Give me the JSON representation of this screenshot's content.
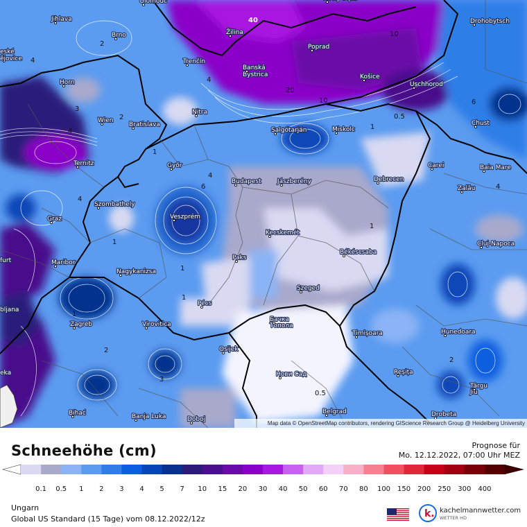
{
  "map": {
    "attribution": "Map data © OpenStreetMap contributors, rendering GIScience Research Group @ Heidelberg University",
    "cities": [
      "Olomouc",
      "Nowy Sącz",
      "Jihlava",
      "Brno",
      "Žilina",
      "Poprad",
      "Drohobytsch",
      "Trenčín",
      "Banská Bystrica",
      "Horn",
      "Košice",
      "Uschhorod",
      "Nitra",
      "Wien",
      "Bratislava",
      "Chust",
      "Miskolc",
      "Salgótarján",
      "Ternitz",
      "Győr",
      "Carei",
      "Budapest",
      "Jászberény",
      "Debrecen",
      "Baia Mare",
      "Szombathely",
      "Zalău",
      "Graz",
      "Veszprém",
      "Kecskemét",
      "Cluj-Napoca",
      "Maribor",
      "Paks",
      "Békéscsaba",
      "Nagykanizsa",
      "Szeged",
      "Pécs",
      "Zagreb",
      "Virovitica",
      "Бачка Топола",
      "Timișoara",
      "Hunedoara",
      "Osijek",
      "Нови Сад",
      "Reșița",
      "Târgu Jiu",
      "Bihać",
      "Banja Luka",
      "Doboj",
      "Belgrad",
      "Drobeta"
    ],
    "edge_labels": [
      "eské",
      "ějovice",
      "furt",
      "bljana",
      "eka"
    ],
    "contour_labels": [
      "40",
      "10",
      "2",
      "2",
      "4",
      "20",
      "10",
      "0.5",
      "1",
      "1",
      "4",
      "4",
      "4",
      "6",
      "1",
      "4",
      "1",
      "1",
      "6",
      "1",
      "2",
      "3",
      "1",
      "0.5",
      "2",
      "3",
      "4"
    ]
  },
  "header": {
    "title": "Schneehöhe (cm)",
    "forecast_label": "Prognose für",
    "forecast_time": "Mo. 12.12.2022, 07:00 Uhr MEZ"
  },
  "legend": {
    "levels": [
      "0.1",
      "0.5",
      "1",
      "2",
      "3",
      "4",
      "5",
      "7",
      "10",
      "15",
      "20",
      "30",
      "40",
      "50",
      "60",
      "70",
      "80",
      "100",
      "150",
      "200",
      "250",
      "300",
      "400"
    ],
    "colors": [
      "#d9daf2",
      "#a9a9cc",
      "#8ab4f5",
      "#5b9bf0",
      "#2f7ee8",
      "#0a5ee0",
      "#0746b8",
      "#06318e",
      "#2b1a7a",
      "#4a0f8c",
      "#6a0aa8",
      "#8a00c8",
      "#a818e0",
      "#c860f0",
      "#e4a8f8",
      "#f4d0f8",
      "#f8b0c8",
      "#f48090",
      "#f05060",
      "#e02838",
      "#c80018",
      "#a00010",
      "#7a0008",
      "#540000"
    ],
    "low_arrow_color": "#ffffff",
    "high_arrow_color": "#3a0000"
  },
  "footer": {
    "region": "Ungarn",
    "model": "Global US Standard (15 Tage)  vom  08.12.2022/12z",
    "brand": "kachelmannwetter.com",
    "brand_sub": "WETTER HD"
  }
}
